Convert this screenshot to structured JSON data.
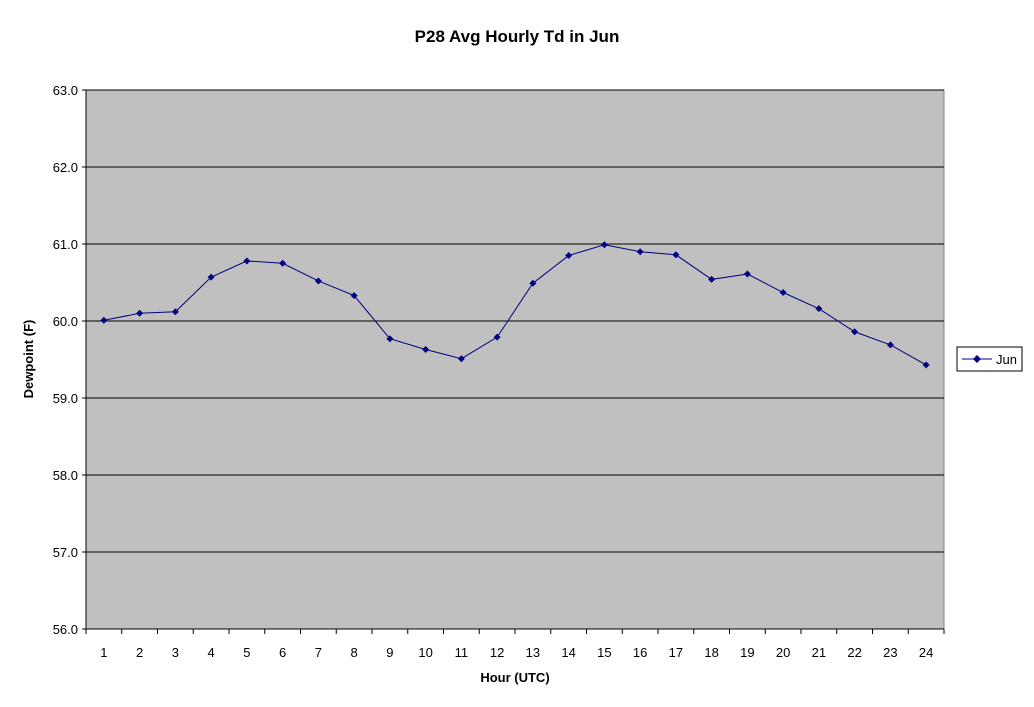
{
  "chart_data": {
    "type": "line",
    "title": "P28 Avg Hourly Td in Jun",
    "xlabel": "Hour (UTC)",
    "ylabel": "Dewpoint (F)",
    "categories": [
      "1",
      "2",
      "3",
      "4",
      "5",
      "6",
      "7",
      "8",
      "9",
      "10",
      "11",
      "12",
      "13",
      "14",
      "15",
      "16",
      "17",
      "18",
      "19",
      "20",
      "21",
      "22",
      "23",
      "24"
    ],
    "series": [
      {
        "name": "Jun",
        "values": [
          60.01,
          60.1,
          60.12,
          60.57,
          60.78,
          60.75,
          60.52,
          60.33,
          59.77,
          59.63,
          59.51,
          59.79,
          60.49,
          60.85,
          60.99,
          60.9,
          60.86,
          60.54,
          60.61,
          60.37,
          60.16,
          59.86,
          59.69,
          59.43
        ]
      }
    ],
    "ylim": [
      56.0,
      63.0
    ],
    "yticks": [
      "56.0",
      "57.0",
      "58.0",
      "59.0",
      "60.0",
      "61.0",
      "62.0",
      "63.0"
    ],
    "grid": "horizontal",
    "legend_position": "right",
    "colors": {
      "series": "#000080",
      "plot_background": "#c0c0c0",
      "gridline": "#000000"
    }
  }
}
